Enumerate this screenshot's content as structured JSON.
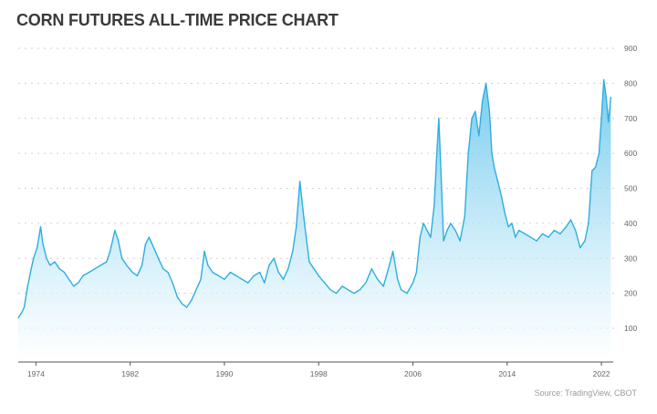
{
  "page": {
    "title": "CORN FUTURES ALL-TIME PRICE CHART",
    "source": "Source: TradingView, CBOT"
  },
  "colors": {
    "line": "#2eaee0",
    "fill_top": "#5cc3ec",
    "fill_bottom": "#ffffff",
    "grid": "#cfcfcf"
  },
  "chart_data": {
    "type": "area",
    "title": "CORN FUTURES ALL-TIME PRICE CHART",
    "xlabel": "",
    "ylabel": "",
    "ylim": [
      100,
      900
    ],
    "xlim": [
      1972.5,
      2023
    ],
    "grid": true,
    "y_ticks": [
      100,
      200,
      300,
      400,
      500,
      600,
      700,
      800,
      900
    ],
    "x_ticks": [
      1974,
      1982,
      1990,
      1998,
      2006,
      2014,
      2022
    ],
    "x_tick_labels": [
      "1974",
      "1982",
      "1990",
      "1998",
      "2006",
      "2014",
      "2022"
    ],
    "series": [
      {
        "name": "",
        "x": [
          1972.5,
          1972.8,
          1973.0,
          1973.3,
          1973.6,
          1973.8,
          1974.1,
          1974.4,
          1974.6,
          1974.9,
          1975.2,
          1975.6,
          1976.0,
          1976.4,
          1976.8,
          1977.2,
          1977.6,
          1978.0,
          1978.5,
          1979.0,
          1979.5,
          1980.0,
          1980.3,
          1980.7,
          1981.0,
          1981.3,
          1981.7,
          1982.2,
          1982.6,
          1983.0,
          1983.3,
          1983.6,
          1984.0,
          1984.4,
          1984.8,
          1985.2,
          1985.6,
          1986.0,
          1986.4,
          1986.8,
          1987.2,
          1987.6,
          1988.0,
          1988.3,
          1988.6,
          1989.0,
          1989.5,
          1990.0,
          1990.5,
          1991.0,
          1991.5,
          1992.0,
          1992.5,
          1993.0,
          1993.4,
          1993.8,
          1994.2,
          1994.6,
          1995.0,
          1995.4,
          1995.8,
          1996.1,
          1996.4,
          1996.8,
          1997.2,
          1997.6,
          1998.0,
          1998.5,
          1999.0,
          1999.5,
          2000.0,
          2000.5,
          2001.0,
          2001.5,
          2002.0,
          2002.5,
          2003.0,
          2003.5,
          2004.0,
          2004.3,
          2004.7,
          2005.0,
          2005.5,
          2006.0,
          2006.3,
          2006.6,
          2006.9,
          2007.2,
          2007.5,
          2007.8,
          2008.0,
          2008.2,
          2008.4,
          2008.6,
          2008.9,
          2009.2,
          2009.6,
          2010.0,
          2010.4,
          2010.7,
          2011.0,
          2011.3,
          2011.6,
          2011.9,
          2012.2,
          2012.5,
          2012.7,
          2012.9,
          2013.2,
          2013.5,
          2013.8,
          2014.1,
          2014.4,
          2014.7,
          2015.0,
          2015.5,
          2016.0,
          2016.5,
          2017.0,
          2017.5,
          2018.0,
          2018.5,
          2019.0,
          2019.4,
          2019.8,
          2020.2,
          2020.6,
          2020.9,
          2021.2,
          2021.5,
          2021.8,
          2022.0,
          2022.2,
          2022.4,
          2022.6,
          2022.8
        ],
        "values": [
          130,
          145,
          160,
          220,
          270,
          300,
          330,
          390,
          340,
          300,
          280,
          290,
          270,
          260,
          240,
          220,
          230,
          250,
          260,
          270,
          280,
          290,
          320,
          380,
          350,
          300,
          280,
          260,
          250,
          280,
          340,
          360,
          330,
          300,
          270,
          260,
          230,
          190,
          170,
          160,
          180,
          210,
          240,
          320,
          280,
          260,
          250,
          240,
          260,
          250,
          240,
          230,
          250,
          260,
          230,
          280,
          300,
          260,
          240,
          270,
          320,
          390,
          520,
          400,
          290,
          270,
          250,
          230,
          210,
          200,
          220,
          210,
          200,
          210,
          230,
          270,
          240,
          220,
          280,
          320,
          240,
          210,
          200,
          230,
          260,
          360,
          400,
          380,
          360,
          450,
          580,
          700,
          530,
          350,
          380,
          400,
          380,
          350,
          420,
          600,
          700,
          720,
          650,
          750,
          800,
          720,
          600,
          560,
          520,
          480,
          430,
          390,
          400,
          360,
          380,
          370,
          360,
          350,
          370,
          360,
          380,
          370,
          390,
          410,
          380,
          330,
          350,
          400,
          550,
          560,
          600,
          700,
          810,
          760,
          690,
          760
        ]
      }
    ]
  }
}
